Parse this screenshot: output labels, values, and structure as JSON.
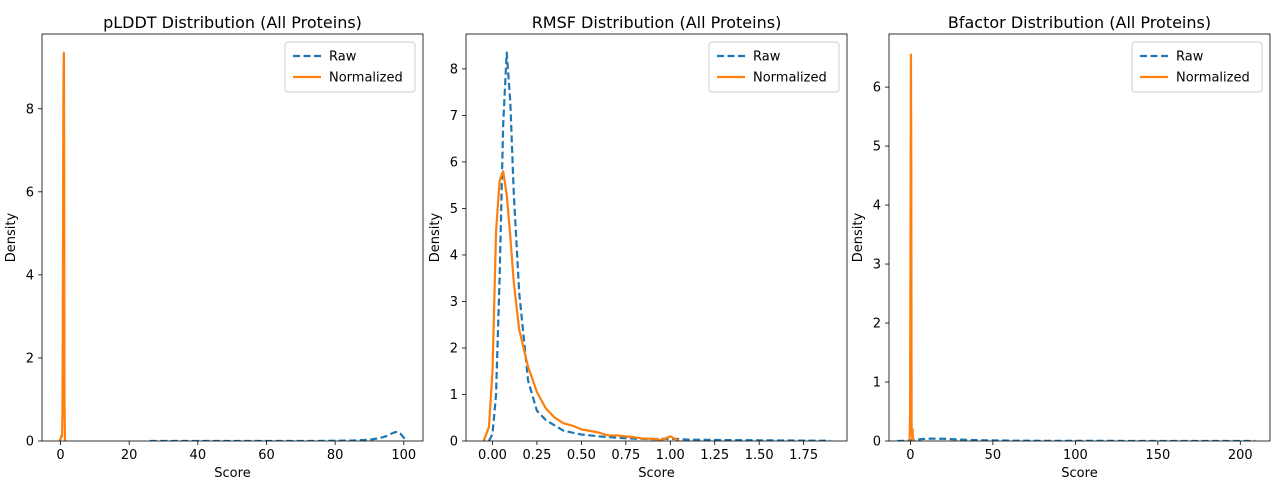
{
  "chart_data": [
    {
      "type": "line",
      "title": "pLDDT Distribution (All Proteins)",
      "xlabel": "Score",
      "ylabel": "Density",
      "xlim": [
        -5.4,
        105.6
      ],
      "ylim": [
        0,
        9.8
      ],
      "xticks": [
        0,
        20,
        40,
        60,
        80,
        100
      ],
      "yticks": [
        0,
        2,
        4,
        6,
        8
      ],
      "xtick_labels": [
        "0",
        "20",
        "40",
        "60",
        "80",
        "100"
      ],
      "ytick_labels": [
        "0",
        "2",
        "4",
        "6",
        "8"
      ],
      "legend": {
        "placement": "top-right",
        "entries": [
          "Raw",
          "Normalized"
        ]
      },
      "series": [
        {
          "name": "Raw",
          "color": "#1f77b4",
          "style": "dashed",
          "x": [
            26,
            40,
            60,
            75,
            85,
            90,
            93,
            95,
            97,
            98,
            99,
            100,
            101
          ],
          "y": [
            0,
            0,
            0,
            0.002,
            0.01,
            0.03,
            0.07,
            0.12,
            0.2,
            0.22,
            0.18,
            0.08,
            0
          ]
        },
        {
          "name": "Normalized",
          "color": "#ff7f0e",
          "style": "solid",
          "x": [
            -0.3,
            0,
            0.2,
            0.35,
            0.45,
            0.55,
            0.65,
            0.75,
            0.85,
            0.95,
            1.0,
            1.05,
            1.15,
            1.3
          ],
          "y": [
            0,
            0.05,
            0.12,
            0.1,
            0.15,
            0.6,
            2.5,
            6.0,
            8.6,
            9.35,
            9.2,
            7.0,
            1.0,
            0
          ]
        }
      ]
    },
    {
      "type": "line",
      "title": "RMSF Distribution (All Proteins)",
      "xlabel": "Score",
      "ylabel": "Density",
      "xlim": [
        -0.149,
        1.994
      ],
      "ylim": [
        0,
        8.75
      ],
      "xticks": [
        0,
        0.25,
        0.5,
        0.75,
        1.0,
        1.25,
        1.5,
        1.75
      ],
      "yticks": [
        0,
        1,
        2,
        3,
        4,
        5,
        6,
        7,
        8
      ],
      "xtick_labels": [
        "0.00",
        "0.25",
        "0.50",
        "0.75",
        "1.00",
        "1.25",
        "1.50",
        "1.75"
      ],
      "ytick_labels": [
        "0",
        "1",
        "2",
        "3",
        "4",
        "5",
        "6",
        "7",
        "8"
      ],
      "legend": {
        "placement": "top-right",
        "entries": [
          "Raw",
          "Normalized"
        ]
      },
      "series": [
        {
          "name": "Raw",
          "color": "#1f77b4",
          "style": "dashed",
          "x": [
            -0.02,
            0,
            0.02,
            0.04,
            0.06,
            0.08,
            0.1,
            0.12,
            0.15,
            0.2,
            0.25,
            0.3,
            0.4,
            0.5,
            0.6,
            0.7,
            0.8,
            0.9,
            1.0,
            1.1,
            1.3,
            1.5,
            1.7,
            1.9
          ],
          "y": [
            0,
            0.15,
            1.0,
            3.5,
            6.8,
            8.35,
            7.3,
            5.3,
            3.2,
            1.3,
            0.65,
            0.45,
            0.22,
            0.14,
            0.1,
            0.07,
            0.05,
            0.04,
            0.05,
            0.03,
            0.02,
            0.015,
            0.01,
            0.005
          ]
        },
        {
          "name": "Normalized",
          "color": "#ff7f0e",
          "style": "solid",
          "x": [
            -0.05,
            -0.02,
            0,
            0.02,
            0.04,
            0.06,
            0.08,
            0.1,
            0.12,
            0.15,
            0.2,
            0.25,
            0.3,
            0.35,
            0.4,
            0.45,
            0.5,
            0.6,
            0.65,
            0.7,
            0.75,
            0.8,
            0.85,
            0.9,
            0.95,
            1.0,
            1.05
          ],
          "y": [
            0,
            0.3,
            1.5,
            4.5,
            5.6,
            5.8,
            5.3,
            4.4,
            3.4,
            2.4,
            1.6,
            1.05,
            0.7,
            0.5,
            0.38,
            0.33,
            0.25,
            0.18,
            0.12,
            0.12,
            0.1,
            0.08,
            0.05,
            0.05,
            0.02,
            0.1,
            0.0
          ]
        }
      ]
    },
    {
      "type": "line",
      "title": "Bfactor Distribution (All Proteins)",
      "xlabel": "Score",
      "ylabel": "Density",
      "xlim": [
        -13,
        218
      ],
      "ylim": [
        0,
        6.9
      ],
      "xticks": [
        0,
        50,
        100,
        150,
        200
      ],
      "yticks": [
        0,
        1,
        2,
        3,
        4,
        5,
        6
      ],
      "xtick_labels": [
        "0",
        "50",
        "100",
        "150",
        "200"
      ],
      "ytick_labels": [
        "0",
        "1",
        "2",
        "3",
        "4",
        "5",
        "6"
      ],
      "legend": {
        "placement": "top-right",
        "entries": [
          "Raw",
          "Normalized"
        ]
      },
      "series": [
        {
          "name": "Raw",
          "color": "#1f77b4",
          "style": "dashed",
          "x": [
            -8,
            -2,
            3,
            8,
            13,
            20,
            30,
            40,
            60,
            80,
            100,
            150,
            209
          ],
          "y": [
            0,
            0.005,
            0.02,
            0.035,
            0.04,
            0.038,
            0.025,
            0.015,
            0.006,
            0.003,
            0.002,
            0.001,
            0
          ]
        },
        {
          "name": "Normalized",
          "color": "#ff7f0e",
          "style": "solid",
          "x": [
            -0.5,
            -0.2,
            0,
            0.3,
            0.5,
            0.7,
            0.9,
            1.1,
            1.3,
            1.5
          ],
          "y": [
            0,
            0.5,
            3.0,
            6.55,
            4.8,
            0.2,
            0.15,
            0.05,
            0.2,
            0
          ]
        }
      ]
    }
  ]
}
